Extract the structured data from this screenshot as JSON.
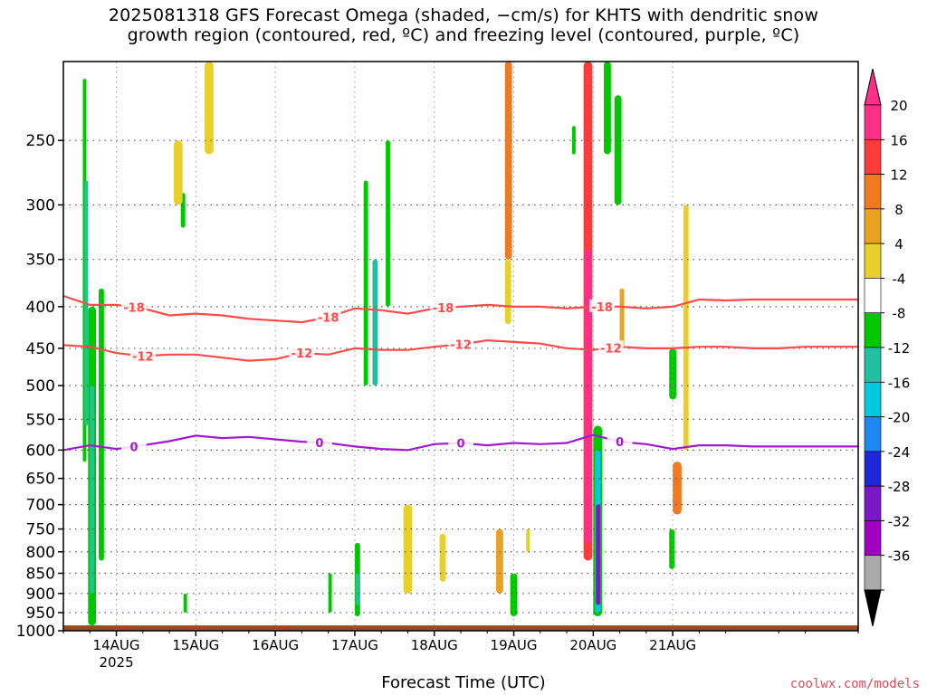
{
  "title_line1": "2025081318 GFS Forecast Omega (shaded, −cm/s) for KHTS with dendritic snow",
  "title_line2": "growth region (contoured, red, ºC) and freezing level (contoured, purple, ºC)",
  "xlabel": "Forecast Time (UTC)",
  "credit": "coolwx.com/models",
  "colors": {
    "ground": "#9e4a1e",
    "isotherm_dgz": "#ff4a4a",
    "freezing_level": "#a21ad0",
    "grid": "#888888"
  },
  "chart_data": {
    "type": "heatmap",
    "title": "2025081318 GFS Forecast Omega (shaded, −cm/s) for KHTS with dendritic snow growth region (contoured, red, ºC) and freezing level (contoured, purple, ºC)",
    "xlabel": "Forecast Time (UTC)",
    "ylabel": "",
    "y_axis": "pressure_hPa_log_reversed",
    "ylim": [
      1000,
      200
    ],
    "y_ticks": [
      250,
      300,
      350,
      400,
      450,
      500,
      550,
      600,
      650,
      700,
      750,
      800,
      850,
      900,
      950,
      1000
    ],
    "x_axis": "forecast_hours",
    "xlim": [
      -6,
      84
    ],
    "x_ticks": [
      {
        "hour": 0,
        "label": "14AUG",
        "sublabel": "2025"
      },
      {
        "hour": 9,
        "label": "15AUG"
      },
      {
        "hour": 18,
        "label": "16AUG"
      },
      {
        "hour": 27,
        "label": "17AUG"
      },
      {
        "hour": 36,
        "label": "18AUG"
      },
      {
        "hour": 45,
        "label": "19AUG"
      },
      {
        "hour": 54,
        "label": "20AUG"
      },
      {
        "hour": 63,
        "label": "21AUG"
      }
    ],
    "grid": true,
    "colorbar": {
      "labels": [
        "20",
        "16",
        "12",
        "8",
        "4",
        "-4",
        "-8",
        "-12",
        "-16",
        "-20",
        "-24",
        "-28",
        "-32",
        "-36"
      ],
      "colors": [
        "#ff2f88",
        "#ff3a3a",
        "#f07a20",
        "#eaa020",
        "#e8d02c",
        "#ffffff",
        "#00c800",
        "#22c0a0",
        "#00c8e0",
        "#1e88f0",
        "#1e28d8",
        "#7a18c8",
        "#a000c0",
        "#aaaaaa"
      ]
    },
    "omega_features": [
      {
        "t0": -3.8,
        "t1": -3.4,
        "p0": 210,
        "p1": 620,
        "v": -8
      },
      {
        "t0": -3.6,
        "t1": -3.2,
        "p0": 280,
        "p1": 560,
        "v": -12
      },
      {
        "t0": -3.2,
        "t1": -2.3,
        "p0": 400,
        "p1": 985,
        "v": -8
      },
      {
        "t0": -3.0,
        "t1": -2.5,
        "p0": 500,
        "p1": 900,
        "v": -12
      },
      {
        "t0": -2.0,
        "t1": -1.4,
        "p0": 380,
        "p1": 820,
        "v": -8
      },
      {
        "t0": 7.3,
        "t1": 7.8,
        "p0": 290,
        "p1": 320,
        "v": -8
      },
      {
        "t0": 7.6,
        "t1": 8.0,
        "p0": 900,
        "p1": 950,
        "v": -8
      },
      {
        "t0": 10.0,
        "t1": 11.0,
        "p0": 200,
        "p1": 260,
        "v": 4
      },
      {
        "t0": 6.5,
        "t1": 7.5,
        "p0": 250,
        "p1": 300,
        "v": 4
      },
      {
        "t0": 24.0,
        "t1": 24.4,
        "p0": 850,
        "p1": 950,
        "v": -8
      },
      {
        "t0": 27.0,
        "t1": 27.6,
        "p0": 780,
        "p1": 960,
        "v": -8
      },
      {
        "t0": 27.1,
        "t1": 27.5,
        "p0": 850,
        "p1": 930,
        "v": -12
      },
      {
        "t0": 28.0,
        "t1": 28.5,
        "p0": 280,
        "p1": 500,
        "v": -8
      },
      {
        "t0": 29.0,
        "t1": 29.6,
        "p0": 350,
        "p1": 500,
        "v": -12
      },
      {
        "t0": 30.5,
        "t1": 31.0,
        "p0": 250,
        "p1": 400,
        "v": -8
      },
      {
        "t0": 32.5,
        "t1": 33.5,
        "p0": 700,
        "p1": 900,
        "v": 4
      },
      {
        "t0": 36.6,
        "t1": 37.3,
        "p0": 760,
        "p1": 870,
        "v": 4
      },
      {
        "t0": 44.0,
        "t1": 44.8,
        "p0": 200,
        "p1": 350,
        "v": 12
      },
      {
        "t0": 44.0,
        "t1": 44.7,
        "p0": 350,
        "p1": 420,
        "v": 4
      },
      {
        "t0": 43.0,
        "t1": 43.8,
        "p0": 750,
        "p1": 900,
        "v": 8
      },
      {
        "t0": 44.6,
        "t1": 45.4,
        "p0": 850,
        "p1": 960,
        "v": -8
      },
      {
        "t0": 46.4,
        "t1": 46.8,
        "p0": 750,
        "p1": 800,
        "v": 4
      },
      {
        "t0": 51.6,
        "t1": 52.0,
        "p0": 240,
        "p1": 260,
        "v": -8
      },
      {
        "t0": 52.9,
        "t1": 53.9,
        "p0": 200,
        "p1": 820,
        "v": 16
      },
      {
        "t0": 53.0,
        "t1": 53.8,
        "p0": 340,
        "p1": 780,
        "v": 20
      },
      {
        "t0": 54.0,
        "t1": 55.0,
        "p0": 560,
        "p1": 960,
        "v": -8
      },
      {
        "t0": 54.2,
        "t1": 54.8,
        "p0": 600,
        "p1": 950,
        "v": -16
      },
      {
        "t0": 54.3,
        "t1": 54.8,
        "p0": 700,
        "p1": 930,
        "v": -24
      },
      {
        "t0": 55.2,
        "t1": 56.0,
        "p0": 200,
        "p1": 260,
        "v": -8
      },
      {
        "t0": 56.4,
        "t1": 57.2,
        "p0": 220,
        "p1": 300,
        "v": -8
      },
      {
        "t0": 57.0,
        "t1": 57.5,
        "p0": 380,
        "p1": 450,
        "v": 8
      },
      {
        "t0": 63.0,
        "t1": 64.0,
        "p0": 620,
        "p1": 720,
        "v": 12
      },
      {
        "t0": 62.6,
        "t1": 63.4,
        "p0": 450,
        "p1": 520,
        "v": -8
      },
      {
        "t0": 62.6,
        "t1": 63.2,
        "p0": 750,
        "p1": 840,
        "v": -8
      },
      {
        "t0": 64.2,
        "t1": 64.8,
        "p0": 300,
        "p1": 600,
        "v": 4
      }
    ],
    "contours": [
      {
        "label": "-18",
        "color": "red",
        "times": [
          -6,
          -3,
          0,
          3,
          6,
          9,
          12,
          15,
          18,
          21,
          24,
          27,
          30,
          33,
          36,
          39,
          42,
          45,
          48,
          51,
          54,
          57,
          60,
          63,
          66,
          69,
          72,
          75,
          78,
          81,
          84
        ],
        "pressure": [
          388,
          398,
          398,
          402,
          410,
          408,
          410,
          414,
          416,
          418,
          412,
          402,
          404,
          408,
          402,
          400,
          398,
          400,
          400,
          402,
          400,
          400,
          402,
          400,
          392,
          393,
          392,
          392,
          392,
          392,
          392
        ],
        "label_times": [
          2,
          24,
          37,
          55
        ]
      },
      {
        "label": "-12",
        "color": "red",
        "times": [
          -6,
          -3,
          0,
          3,
          6,
          9,
          12,
          15,
          18,
          21,
          24,
          27,
          30,
          33,
          36,
          39,
          42,
          45,
          48,
          51,
          54,
          57,
          60,
          63,
          66,
          69,
          72,
          75,
          78,
          81,
          84
        ],
        "pressure": [
          446,
          448,
          456,
          460,
          458,
          458,
          462,
          466,
          464,
          456,
          458,
          450,
          452,
          452,
          448,
          445,
          440,
          442,
          444,
          450,
          452,
          448,
          450,
          450,
          448,
          448,
          450,
          450,
          448,
          448,
          448
        ],
        "label_times": [
          3,
          21,
          39,
          56
        ]
      },
      {
        "label": "0",
        "color": "purple",
        "times": [
          -6,
          -3,
          0,
          3,
          6,
          9,
          12,
          15,
          18,
          21,
          24,
          27,
          30,
          33,
          36,
          39,
          42,
          45,
          48,
          51,
          54,
          57,
          60,
          63,
          66,
          69,
          72,
          75,
          78,
          81,
          84
        ],
        "pressure": [
          600,
          592,
          598,
          592,
          585,
          576,
          580,
          578,
          582,
          586,
          588,
          594,
          598,
          600,
          590,
          588,
          592,
          588,
          590,
          588,
          575,
          586,
          590,
          598,
          592,
          592,
          594,
          594,
          594,
          594,
          594
        ],
        "label_times": [
          2,
          23,
          39,
          57
        ]
      }
    ]
  }
}
